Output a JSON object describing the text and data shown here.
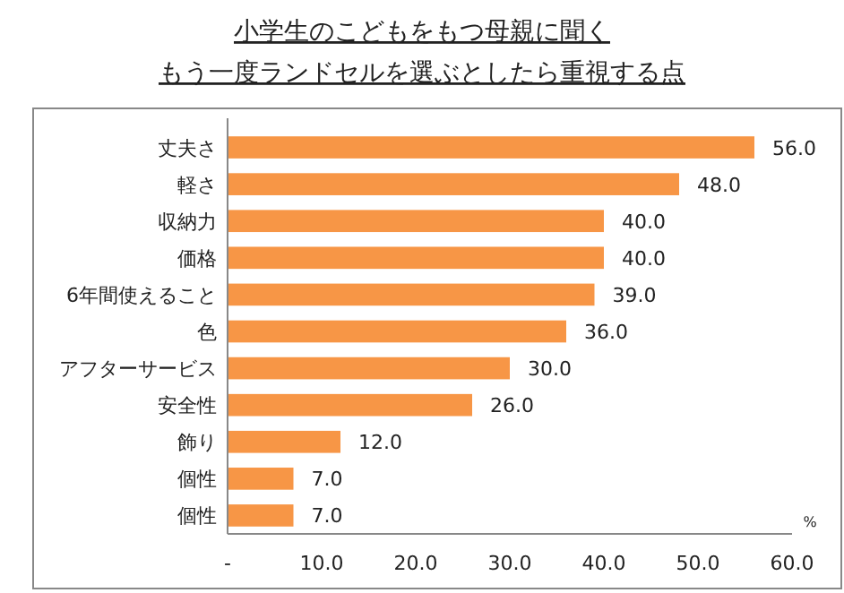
{
  "chart_data": {
    "type": "bar",
    "orientation": "horizontal",
    "title": "小学生のこどもをもつ母親に聞く",
    "subtitle": "もう一度ランドセルを選ぶとしたら重視する点",
    "xlabel": "%",
    "categories": [
      "丈夫さ",
      "軽さ",
      "収納力",
      "価格",
      "6年間使えること",
      "色",
      "アフターサービス",
      "安全性",
      "飾り",
      "個性",
      "個性"
    ],
    "values": [
      56,
      48,
      40,
      40,
      39,
      36,
      30,
      26,
      12,
      7,
      7
    ],
    "value_labels": [
      "56.0",
      "48.0",
      "40.0",
      "40.0",
      "39.0",
      "36.0",
      "30.0",
      "26.0",
      "12.0",
      "7.0",
      "7.0"
    ],
    "color": "#f79646",
    "xlim": [
      0,
      60
    ],
    "xticks": [
      {
        "value": 0,
        "label": "-"
      },
      {
        "value": 10,
        "label": "10.0"
      },
      {
        "value": 20,
        "label": "20.0"
      },
      {
        "value": 30,
        "label": "30.0"
      },
      {
        "value": 40,
        "label": "40.0"
      },
      {
        "value": 50,
        "label": "50.0"
      },
      {
        "value": 60,
        "label": "60.0"
      }
    ],
    "grid": false
  }
}
